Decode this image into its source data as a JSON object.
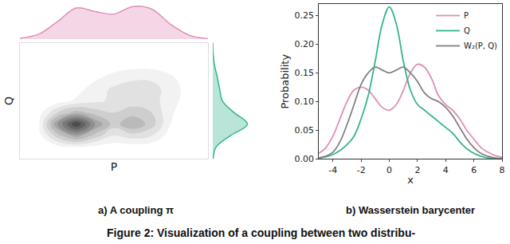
{
  "chart_data": [
    {
      "type": "contour",
      "title": "a) A coupling π",
      "x_label": "P",
      "y_label": "Q",
      "tick_labels": false,
      "xlim": [
        0,
        1
      ],
      "ylim": [
        0,
        1
      ],
      "x": [
        0,
        0.1,
        0.2,
        0.3,
        0.4,
        0.5,
        0.6,
        0.7,
        0.8,
        0.9,
        1
      ],
      "y": [
        0,
        0.1,
        0.2,
        0.3,
        0.4,
        0.5,
        0.6,
        0.7,
        0.8,
        0.9,
        1
      ],
      "cells": [
        [
          0,
          0,
          0,
          0,
          0,
          0,
          0,
          0,
          0,
          0,
          0
        ],
        [
          0,
          0,
          0.05,
          0.08,
          0.06,
          0.04,
          0.04,
          0.03,
          0,
          0,
          0
        ],
        [
          0,
          0.05,
          0.35,
          0.55,
          0.35,
          0.2,
          0.25,
          0.2,
          0.05,
          0,
          0
        ],
        [
          0,
          0.08,
          0.6,
          1.0,
          0.6,
          0.35,
          0.5,
          0.35,
          0.1,
          0,
          0
        ],
        [
          0,
          0.05,
          0.3,
          0.45,
          0.35,
          0.3,
          0.35,
          0.3,
          0.12,
          0.02,
          0
        ],
        [
          0,
          0,
          0.05,
          0.12,
          0.18,
          0.22,
          0.25,
          0.24,
          0.15,
          0.04,
          0
        ],
        [
          0,
          0,
          0.02,
          0.06,
          0.15,
          0.22,
          0.25,
          0.24,
          0.16,
          0.05,
          0
        ],
        [
          0,
          0,
          0,
          0.03,
          0.08,
          0.14,
          0.18,
          0.18,
          0.12,
          0.04,
          0
        ],
        [
          0,
          0,
          0,
          0,
          0.02,
          0.05,
          0.07,
          0.07,
          0.05,
          0.02,
          0
        ],
        [
          0,
          0,
          0,
          0,
          0,
          0,
          0,
          0,
          0,
          0,
          0
        ],
        [
          0,
          0,
          0,
          0,
          0,
          0,
          0,
          0,
          0,
          0,
          0
        ]
      ],
      "x_marginal": {
        "color": "#e08db8",
        "ylim": [
          0,
          0.7
        ],
        "values": [
          0.02,
          0.1,
          0.35,
          0.62,
          0.55,
          0.5,
          0.65,
          0.6,
          0.3,
          0.08,
          0.01
        ]
      },
      "y_marginal": {
        "color": "#33b58f",
        "xlim": [
          0,
          1
        ],
        "values": [
          0.01,
          0.08,
          0.45,
          0.9,
          0.55,
          0.25,
          0.18,
          0.12,
          0.05,
          0.01,
          0
        ]
      }
    },
    {
      "type": "line",
      "title": "b) Wasserstein barycenter",
      "x_label": "x",
      "y_label": "Probability",
      "grid": false,
      "legend": "upper right",
      "xlim": [
        -5,
        8
      ],
      "xticks": [
        -4,
        -2,
        0,
        2,
        4,
        6,
        8
      ],
      "ylim": [
        0,
        0.27
      ],
      "yticks": [
        {
          "value": 0,
          "label": "0.00"
        },
        {
          "value": 0.05,
          "label": "0.05"
        },
        {
          "value": 0.1,
          "label": "0.10"
        },
        {
          "value": 0.15,
          "label": "0.15"
        },
        {
          "value": 0.2,
          "label": "0.20"
        },
        {
          "value": 0.25,
          "label": "0.25"
        }
      ],
      "x": [
        -5,
        -4.5,
        -4,
        -3.5,
        -3,
        -2.5,
        -2,
        -1.5,
        -1,
        -0.5,
        0,
        0.5,
        1,
        1.5,
        2,
        2.5,
        3,
        3.5,
        4,
        4.5,
        5,
        5.5,
        6,
        6.5,
        7,
        7.5,
        8
      ],
      "series": [
        {
          "name": "P",
          "color": "#e08db8",
          "values": [
            0.01,
            0.02,
            0.04,
            0.07,
            0.1,
            0.12,
            0.125,
            0.12,
            0.105,
            0.09,
            0.085,
            0.095,
            0.12,
            0.15,
            0.165,
            0.16,
            0.14,
            0.11,
            0.095,
            0.085,
            0.07,
            0.05,
            0.035,
            0.02,
            0.012,
            0.006,
            0.003
          ]
        },
        {
          "name": "Q",
          "color": "#33b58f",
          "values": [
            0.002,
            0.004,
            0.008,
            0.015,
            0.025,
            0.04,
            0.07,
            0.11,
            0.17,
            0.235,
            0.265,
            0.235,
            0.17,
            0.12,
            0.095,
            0.085,
            0.075,
            0.065,
            0.055,
            0.045,
            0.03,
            0.018,
            0.01,
            0.005,
            0.002,
            0.001,
            0
          ]
        },
        {
          "name": "W₂(P, Q)",
          "color": "#808080",
          "values": [
            0.002,
            0.005,
            0.012,
            0.03,
            0.06,
            0.095,
            0.13,
            0.15,
            0.16,
            0.155,
            0.15,
            0.155,
            0.16,
            0.15,
            0.135,
            0.115,
            0.105,
            0.1,
            0.09,
            0.075,
            0.055,
            0.035,
            0.02,
            0.01,
            0.005,
            0.002,
            0.001
          ]
        }
      ]
    }
  ],
  "caption": "Figure 2: Visualization of a coupling between two distribu-"
}
